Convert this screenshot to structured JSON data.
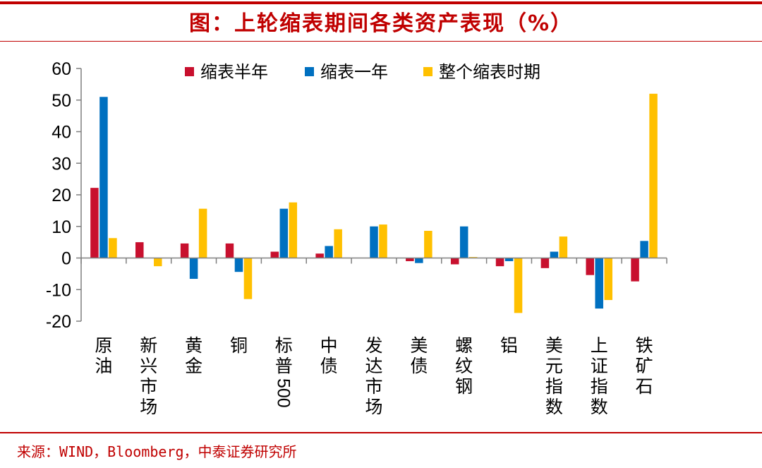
{
  "header": {
    "title": "图：上轮缩表期间各类资产表现（%）"
  },
  "footer": {
    "source": "来源：WIND，Bloomberg，中泰证券研究所"
  },
  "chart_data": {
    "type": "bar",
    "title": "图：上轮缩表期间各类资产表现（%）",
    "ylabel": "%",
    "ylim": [
      -20,
      60
    ],
    "yticks": [
      60,
      50,
      40,
      30,
      20,
      10,
      0,
      -10,
      -20
    ],
    "legend_position": "top",
    "categories": [
      "原油",
      "新兴市场",
      "黄金",
      "铜",
      "标普500",
      "中债",
      "发达市场",
      "美债",
      "螺纹钢",
      "铝",
      "美元指数",
      "上证指数",
      "铁矿石"
    ],
    "series": [
      {
        "name": "缩表半年",
        "color": "#c8102e",
        "values": [
          22.2,
          5.0,
          4.6,
          4.6,
          2.0,
          1.4,
          0.0,
          -1.0,
          -2.0,
          -2.6,
          -3.2,
          -5.4,
          -7.4
        ]
      },
      {
        "name": "缩表一年",
        "color": "#0070c0",
        "values": [
          51.0,
          0.0,
          -6.6,
          -4.4,
          15.6,
          3.8,
          10.0,
          -1.6,
          10.0,
          -1.0,
          2.0,
          -16.0,
          5.4
        ]
      },
      {
        "name": "整个缩表时期",
        "color": "#ffc000",
        "values": [
          6.3,
          -2.6,
          15.6,
          -13.0,
          17.6,
          9.1,
          10.6,
          8.6,
          0.3,
          -17.4,
          6.8,
          -13.3,
          52.0
        ]
      }
    ]
  }
}
